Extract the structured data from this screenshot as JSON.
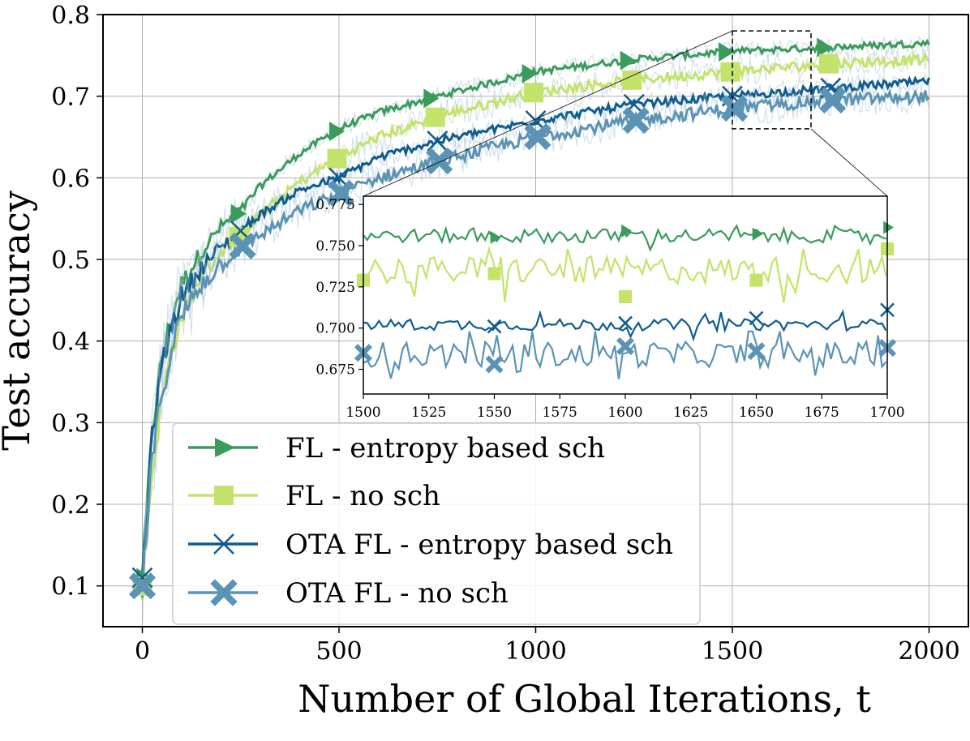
{
  "chart_data": [
    {
      "type": "line",
      "panel": "main",
      "title": "",
      "xlabel": "Number of Global Iterations, t",
      "ylabel": "Test accuracy",
      "xlim": [
        -100,
        2100
      ],
      "ylim": [
        0.05,
        0.8
      ],
      "xticks": [
        0,
        500,
        1000,
        1500,
        2000
      ],
      "xtick_labels": [
        "0",
        "500",
        "1000",
        "1500",
        "2000"
      ],
      "yticks": [
        0.1,
        0.2,
        0.3,
        0.4,
        0.5,
        0.6,
        0.7,
        0.8
      ],
      "ytick_labels": [
        "0.1",
        "0.2",
        "0.3",
        "0.4",
        "0.5",
        "0.6",
        "0.7",
        "0.8"
      ],
      "grid": true,
      "legend_position": "lower-left",
      "x": [
        0,
        25,
        50,
        75,
        100,
        150,
        200,
        250,
        300,
        400,
        500,
        600,
        750,
        1000,
        1250,
        1500,
        1750,
        2000
      ],
      "series": [
        {
          "name": "FL - entropy based sch",
          "color": "#3a9b5b",
          "marker": "triangle-right",
          "values": [
            0.11,
            0.29,
            0.38,
            0.43,
            0.47,
            0.51,
            0.54,
            0.56,
            0.59,
            0.63,
            0.66,
            0.68,
            0.7,
            0.73,
            0.745,
            0.755,
            0.76,
            0.765
          ],
          "marker_x": [
            0,
            240,
            490,
            730,
            980,
            1230,
            1480,
            1730
          ]
        },
        {
          "name": "FL - no sch",
          "color": "#c3e36a",
          "marker": "square",
          "values": [
            0.1,
            0.24,
            0.33,
            0.39,
            0.43,
            0.48,
            0.51,
            0.53,
            0.555,
            0.595,
            0.625,
            0.65,
            0.675,
            0.705,
            0.72,
            0.73,
            0.74,
            0.745
          ],
          "marker_x": [
            0,
            245,
            495,
            745,
            995,
            1245,
            1495,
            1745
          ]
        },
        {
          "name": "OTA FL - entropy based sch",
          "color": "#0f5c8e",
          "marker": "x",
          "values": [
            0.11,
            0.28,
            0.37,
            0.42,
            0.455,
            0.49,
            0.515,
            0.535,
            0.555,
            0.585,
            0.6,
            0.625,
            0.645,
            0.67,
            0.69,
            0.7,
            0.71,
            0.718
          ],
          "marker_x": [
            0,
            250,
            500,
            750,
            1000,
            1250,
            1500,
            1750
          ]
        },
        {
          "name": "OTA FL - no sch",
          "color": "#5b93b4",
          "marker": "thick-x",
          "values": [
            0.1,
            0.25,
            0.34,
            0.39,
            0.43,
            0.47,
            0.495,
            0.515,
            0.53,
            0.56,
            0.58,
            0.6,
            0.62,
            0.65,
            0.67,
            0.685,
            0.695,
            0.7
          ],
          "marker_x": [
            0,
            255,
            505,
            755,
            1005,
            1255,
            1505,
            1755
          ]
        }
      ]
    },
    {
      "type": "line",
      "panel": "inset",
      "title": "",
      "xlabel": "",
      "ylabel": "",
      "xlim": [
        1500,
        1700
      ],
      "ylim": [
        0.66,
        0.78
      ],
      "xticks": [
        1500,
        1525,
        1550,
        1575,
        1600,
        1625,
        1650,
        1675,
        1700
      ],
      "xtick_labels": [
        "1500",
        "1525",
        "1550",
        "1575",
        "1600",
        "1625",
        "1650",
        "1675",
        "1700"
      ],
      "yticks": [
        0.675,
        0.7,
        0.725,
        0.75,
        0.775
      ],
      "ytick_labels": [
        "0.675",
        "0.700",
        "0.725",
        "0.750",
        "0.775"
      ],
      "grid": false,
      "zoom_region": {
        "x": [
          1500,
          1700
        ],
        "y": [
          0.66,
          0.78
        ]
      },
      "series": [
        {
          "name": "FL - entropy based sch",
          "mean": 0.756,
          "noise": 0.006,
          "min": 0.745,
          "max": 0.762,
          "marker_x": [
            1550,
            1600,
            1650,
            1700
          ],
          "marker_y": [
            0.755,
            0.759,
            0.757,
            0.761
          ]
        },
        {
          "name": "FL - no sch",
          "mean": 0.735,
          "noise": 0.012,
          "min": 0.705,
          "max": 0.748,
          "marker_x": [
            1500,
            1550,
            1600,
            1650,
            1700
          ],
          "marker_y": [
            0.729,
            0.733,
            0.719,
            0.729,
            0.748
          ]
        },
        {
          "name": "OTA FL - entropy based sch",
          "mean": 0.702,
          "noise": 0.005,
          "min": 0.692,
          "max": 0.712,
          "marker_x": [
            1550,
            1600,
            1650,
            1700
          ],
          "marker_y": [
            0.701,
            0.703,
            0.706,
            0.711
          ]
        },
        {
          "name": "OTA FL - no sch",
          "mean": 0.684,
          "noise": 0.011,
          "min": 0.663,
          "max": 0.698,
          "marker_x": [
            1500,
            1550,
            1600,
            1650,
            1700
          ],
          "marker_y": [
            0.685,
            0.678,
            0.689,
            0.686,
            0.688
          ]
        }
      ]
    }
  ],
  "legend": {
    "items": [
      {
        "label": "FL - entropy based sch"
      },
      {
        "label": "FL - no sch"
      },
      {
        "label": "OTA FL - entropy based sch"
      },
      {
        "label": "OTA FL - no sch"
      }
    ]
  }
}
